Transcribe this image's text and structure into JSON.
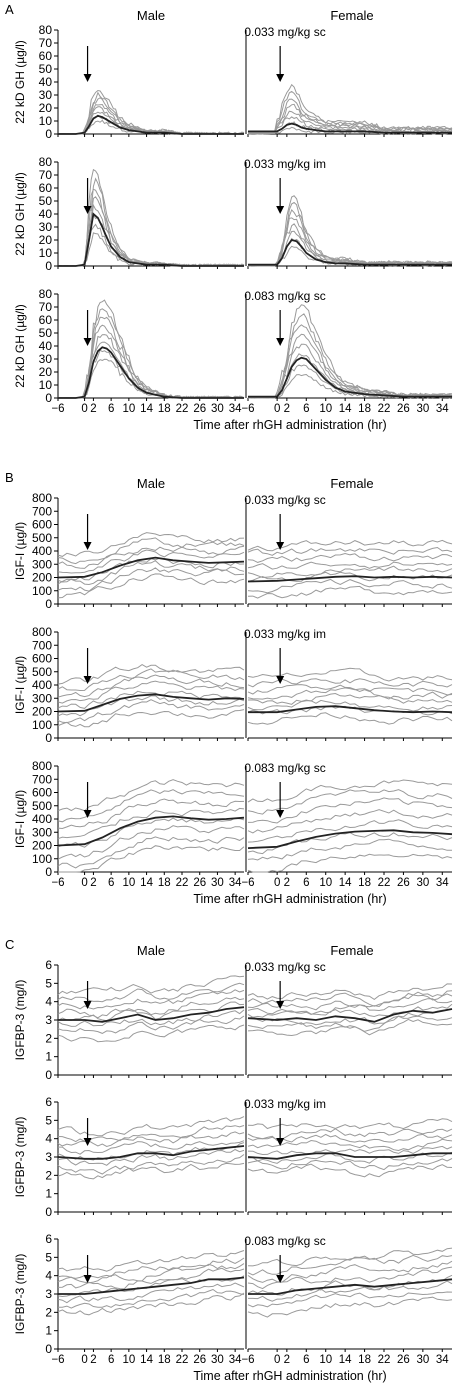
{
  "figure": {
    "xlabel": "Time after rhGH administration (hr)",
    "x_ticks": [
      "−6",
      "0",
      "2",
      "6",
      "10",
      "14",
      "18",
      "22",
      "26",
      "30",
      "34"
    ],
    "x_tick_values": [
      -6,
      0,
      2,
      6,
      10,
      14,
      18,
      22,
      26,
      30,
      34
    ],
    "xlim": [
      -6,
      36
    ],
    "columns": [
      "Male",
      "Female"
    ],
    "doses": [
      "0.033 mg/kg sc",
      "0.033 mg/kg im",
      "0.083 mg/kg sc"
    ],
    "colors": {
      "individual": "#9a9a9a",
      "mean": "#222222",
      "axis": "#000000"
    }
  },
  "chart_data": [
    {
      "type": "line",
      "panel": "A",
      "ylabel": "22 kD GH (µg/l)",
      "ylim": [
        0,
        80
      ],
      "yticks": [
        0,
        10,
        20,
        30,
        40,
        50,
        60,
        70,
        80
      ],
      "ytick_labels": [
        "0",
        "10",
        "20",
        "30",
        "40",
        "50",
        "60",
        "70",
        "80"
      ],
      "grid": false,
      "rows": [
        {
          "dose": "0.033 mg/kg sc",
          "male": {
            "arrow_at": 0,
            "mean_x": [
              -6,
              -2,
              0,
              1,
              2,
              3,
              4,
              5,
              6,
              8,
              10,
              12,
              14,
              18,
              22,
              26,
              30,
              34,
              36
            ],
            "mean_y": [
              0,
              0,
              1,
              6,
              12,
              14,
              13,
              11,
              9,
              5,
              3,
              2,
              1,
              1,
              0,
              0,
              0,
              0,
              0
            ],
            "peak_range": [
              10,
              34
            ]
          },
          "female": {
            "arrow_at": 0,
            "mean_x": [
              -6,
              -2,
              0,
              1,
              2,
              3,
              4,
              5,
              6,
              8,
              10,
              12,
              14,
              18,
              22,
              26,
              30,
              34,
              36
            ],
            "mean_y": [
              2,
              2,
              2,
              4,
              7,
              8,
              7,
              5,
              4,
              3,
              2,
              2,
              2,
              2,
              1,
              1,
              1,
              1,
              1
            ],
            "peak_range": [
              4,
              37
            ]
          }
        },
        {
          "dose": "0.033 mg/kg im",
          "male": {
            "arrow_at": 0,
            "mean_x": [
              -6,
              -2,
              0,
              1,
              2,
              3,
              4,
              5,
              6,
              8,
              10,
              12,
              14,
              18,
              22,
              26,
              30,
              34,
              36
            ],
            "mean_y": [
              0,
              0,
              1,
              20,
              40,
              37,
              30,
              22,
              15,
              7,
              3,
              2,
              1,
              1,
              0,
              0,
              0,
              0,
              0
            ],
            "peak_range": [
              25,
              75
            ]
          },
          "female": {
            "arrow_at": 0,
            "mean_x": [
              -6,
              -2,
              0,
              1,
              2,
              3,
              4,
              5,
              6,
              8,
              10,
              12,
              14,
              18,
              22,
              26,
              30,
              34,
              36
            ],
            "mean_y": [
              1,
              1,
              1,
              6,
              15,
              20,
              19,
              15,
              10,
              5,
              3,
              2,
              2,
              1,
              1,
              1,
              1,
              1,
              1
            ],
            "peak_range": [
              15,
              54
            ]
          }
        },
        {
          "dose": "0.083 mg/kg sc",
          "male": {
            "arrow_at": 0,
            "mean_x": [
              -6,
              -2,
              0,
              1,
              2,
              3,
              4,
              5,
              6,
              8,
              10,
              12,
              14,
              18,
              22,
              26,
              30,
              34,
              36
            ],
            "mean_y": [
              0,
              0,
              1,
              12,
              28,
              36,
              39,
              38,
              35,
              25,
              15,
              8,
              4,
              1,
              0,
              0,
              0,
              0,
              0
            ],
            "peak_range": [
              30,
              75
            ]
          },
          "female": {
            "arrow_at": 0,
            "mean_x": [
              -6,
              -2,
              0,
              1,
              2,
              3,
              4,
              5,
              6,
              8,
              10,
              12,
              14,
              18,
              22,
              26,
              30,
              34,
              36
            ],
            "mean_y": [
              1,
              1,
              1,
              6,
              15,
              24,
              29,
              31,
              30,
              22,
              14,
              8,
              5,
              3,
              2,
              1,
              1,
              1,
              1
            ],
            "peak_range": [
              18,
              72
            ]
          }
        }
      ]
    },
    {
      "type": "line",
      "panel": "B",
      "ylabel": "IGF-I (µg/l)",
      "ylim": [
        0,
        800
      ],
      "yticks": [
        0,
        100,
        200,
        300,
        400,
        500,
        600,
        700,
        800
      ],
      "ytick_labels": [
        "0",
        "100",
        "200",
        "300",
        "400",
        "500",
        "600",
        "700",
        "800"
      ],
      "grid": false,
      "rows": [
        {
          "dose": "0.033 mg/kg sc",
          "male": {
            "arrow_at": 0,
            "mean_x": [
              -6,
              0,
              4,
              8,
              12,
              16,
              20,
              24,
              28,
              32,
              36
            ],
            "mean_y": [
              200,
              205,
              240,
              290,
              330,
              350,
              330,
              320,
              310,
              315,
              320
            ],
            "spread": [
              170,
              540
            ]
          },
          "female": {
            "arrow_at": 0,
            "mean_x": [
              -6,
              0,
              4,
              8,
              12,
              16,
              20,
              24,
              28,
              32,
              36
            ],
            "mean_y": [
              170,
              175,
              185,
              195,
              205,
              210,
              200,
              205,
              200,
              205,
              200
            ],
            "spread": [
              80,
              500
            ]
          }
        },
        {
          "dose": "0.033 mg/kg im",
          "male": {
            "arrow_at": 0,
            "mean_x": [
              -6,
              0,
              4,
              8,
              12,
              16,
              20,
              24,
              28,
              32,
              36
            ],
            "mean_y": [
              200,
              205,
              250,
              295,
              320,
              330,
              310,
              300,
              290,
              300,
              295
            ],
            "spread": [
              170,
              570
            ]
          },
          "female": {
            "arrow_at": 0,
            "mean_x": [
              -6,
              0,
              4,
              8,
              12,
              16,
              20,
              24,
              28,
              32,
              36
            ],
            "mean_y": [
              195,
              195,
              215,
              235,
              240,
              225,
              210,
              200,
              195,
              200,
              195
            ],
            "spread": [
              140,
              510
            ]
          }
        },
        {
          "dose": "0.083 mg/kg sc",
          "male": {
            "arrow_at": 0,
            "mean_x": [
              -6,
              0,
              4,
              8,
              12,
              16,
              20,
              24,
              28,
              32,
              36
            ],
            "mean_y": [
              200,
              210,
              260,
              330,
              380,
              410,
              420,
              405,
              395,
              400,
              410
            ],
            "spread": [
              160,
              720
            ]
          },
          "female": {
            "arrow_at": 0,
            "mean_x": [
              -6,
              0,
              4,
              8,
              12,
              16,
              20,
              24,
              28,
              32,
              36
            ],
            "mean_y": [
              180,
              190,
              230,
              265,
              290,
              305,
              310,
              315,
              300,
              295,
              285
            ],
            "spread": [
              110,
              740
            ]
          }
        }
      ]
    },
    {
      "type": "line",
      "panel": "C",
      "ylabel": "IGFBP-3 (mg/l)",
      "ylim": [
        0,
        6
      ],
      "yticks": [
        0,
        1,
        2,
        3,
        4,
        5,
        6
      ],
      "ytick_labels": [
        "0",
        "1",
        "2",
        "3",
        "4",
        "5",
        "6"
      ],
      "grid": false,
      "rows": [
        {
          "dose": "0.033 mg/kg sc",
          "male": {
            "arrow_at": 0,
            "mean_x": [
              -6,
              0,
              4,
              8,
              12,
              16,
              20,
              24,
              28,
              32,
              36
            ],
            "mean_y": [
              3.0,
              3.0,
              2.9,
              3.1,
              3.3,
              3.0,
              3.1,
              3.3,
              3.4,
              3.6,
              3.7
            ],
            "spread": [
              2.0,
              4.9
            ]
          },
          "female": {
            "arrow_at": 0,
            "mean_x": [
              -6,
              0,
              4,
              8,
              12,
              16,
              20,
              24,
              28,
              32,
              36
            ],
            "mean_y": [
              3.1,
              3.0,
              3.1,
              3.0,
              3.2,
              3.1,
              2.9,
              3.3,
              3.5,
              3.4,
              3.6
            ],
            "spread": [
              2.2,
              4.4
            ]
          }
        },
        {
          "dose": "0.033 mg/kg im",
          "male": {
            "arrow_at": 0,
            "mean_x": [
              -6,
              0,
              4,
              8,
              12,
              16,
              20,
              24,
              28,
              32,
              36
            ],
            "mean_y": [
              3.0,
              2.9,
              2.9,
              3.0,
              3.2,
              3.2,
              3.1,
              3.3,
              3.4,
              3.5,
              3.6
            ],
            "spread": [
              2.0,
              4.8
            ]
          },
          "female": {
            "arrow_at": 0,
            "mean_x": [
              -6,
              0,
              4,
              8,
              12,
              16,
              20,
              24,
              28,
              32,
              36
            ],
            "mean_y": [
              3.0,
              2.9,
              3.1,
              3.2,
              3.2,
              3.0,
              3.0,
              3.0,
              3.1,
              3.2,
              3.2
            ],
            "spread": [
              2.1,
              4.9
            ]
          }
        },
        {
          "dose": "0.083 mg/kg sc",
          "male": {
            "arrow_at": 0,
            "mean_x": [
              -6,
              0,
              4,
              8,
              12,
              16,
              20,
              24,
              28,
              32,
              36
            ],
            "mean_y": [
              3.0,
              3.0,
              3.1,
              3.2,
              3.3,
              3.4,
              3.5,
              3.6,
              3.8,
              3.8,
              3.9
            ],
            "spread": [
              2.3,
              5.1
            ]
          },
          "female": {
            "arrow_at": 0,
            "mean_x": [
              -6,
              0,
              4,
              8,
              12,
              16,
              20,
              24,
              28,
              32,
              36
            ],
            "mean_y": [
              3.0,
              3.0,
              3.2,
              3.3,
              3.4,
              3.5,
              3.4,
              3.5,
              3.6,
              3.7,
              3.8
            ],
            "spread": [
              2.2,
              5.3
            ]
          }
        }
      ]
    }
  ]
}
